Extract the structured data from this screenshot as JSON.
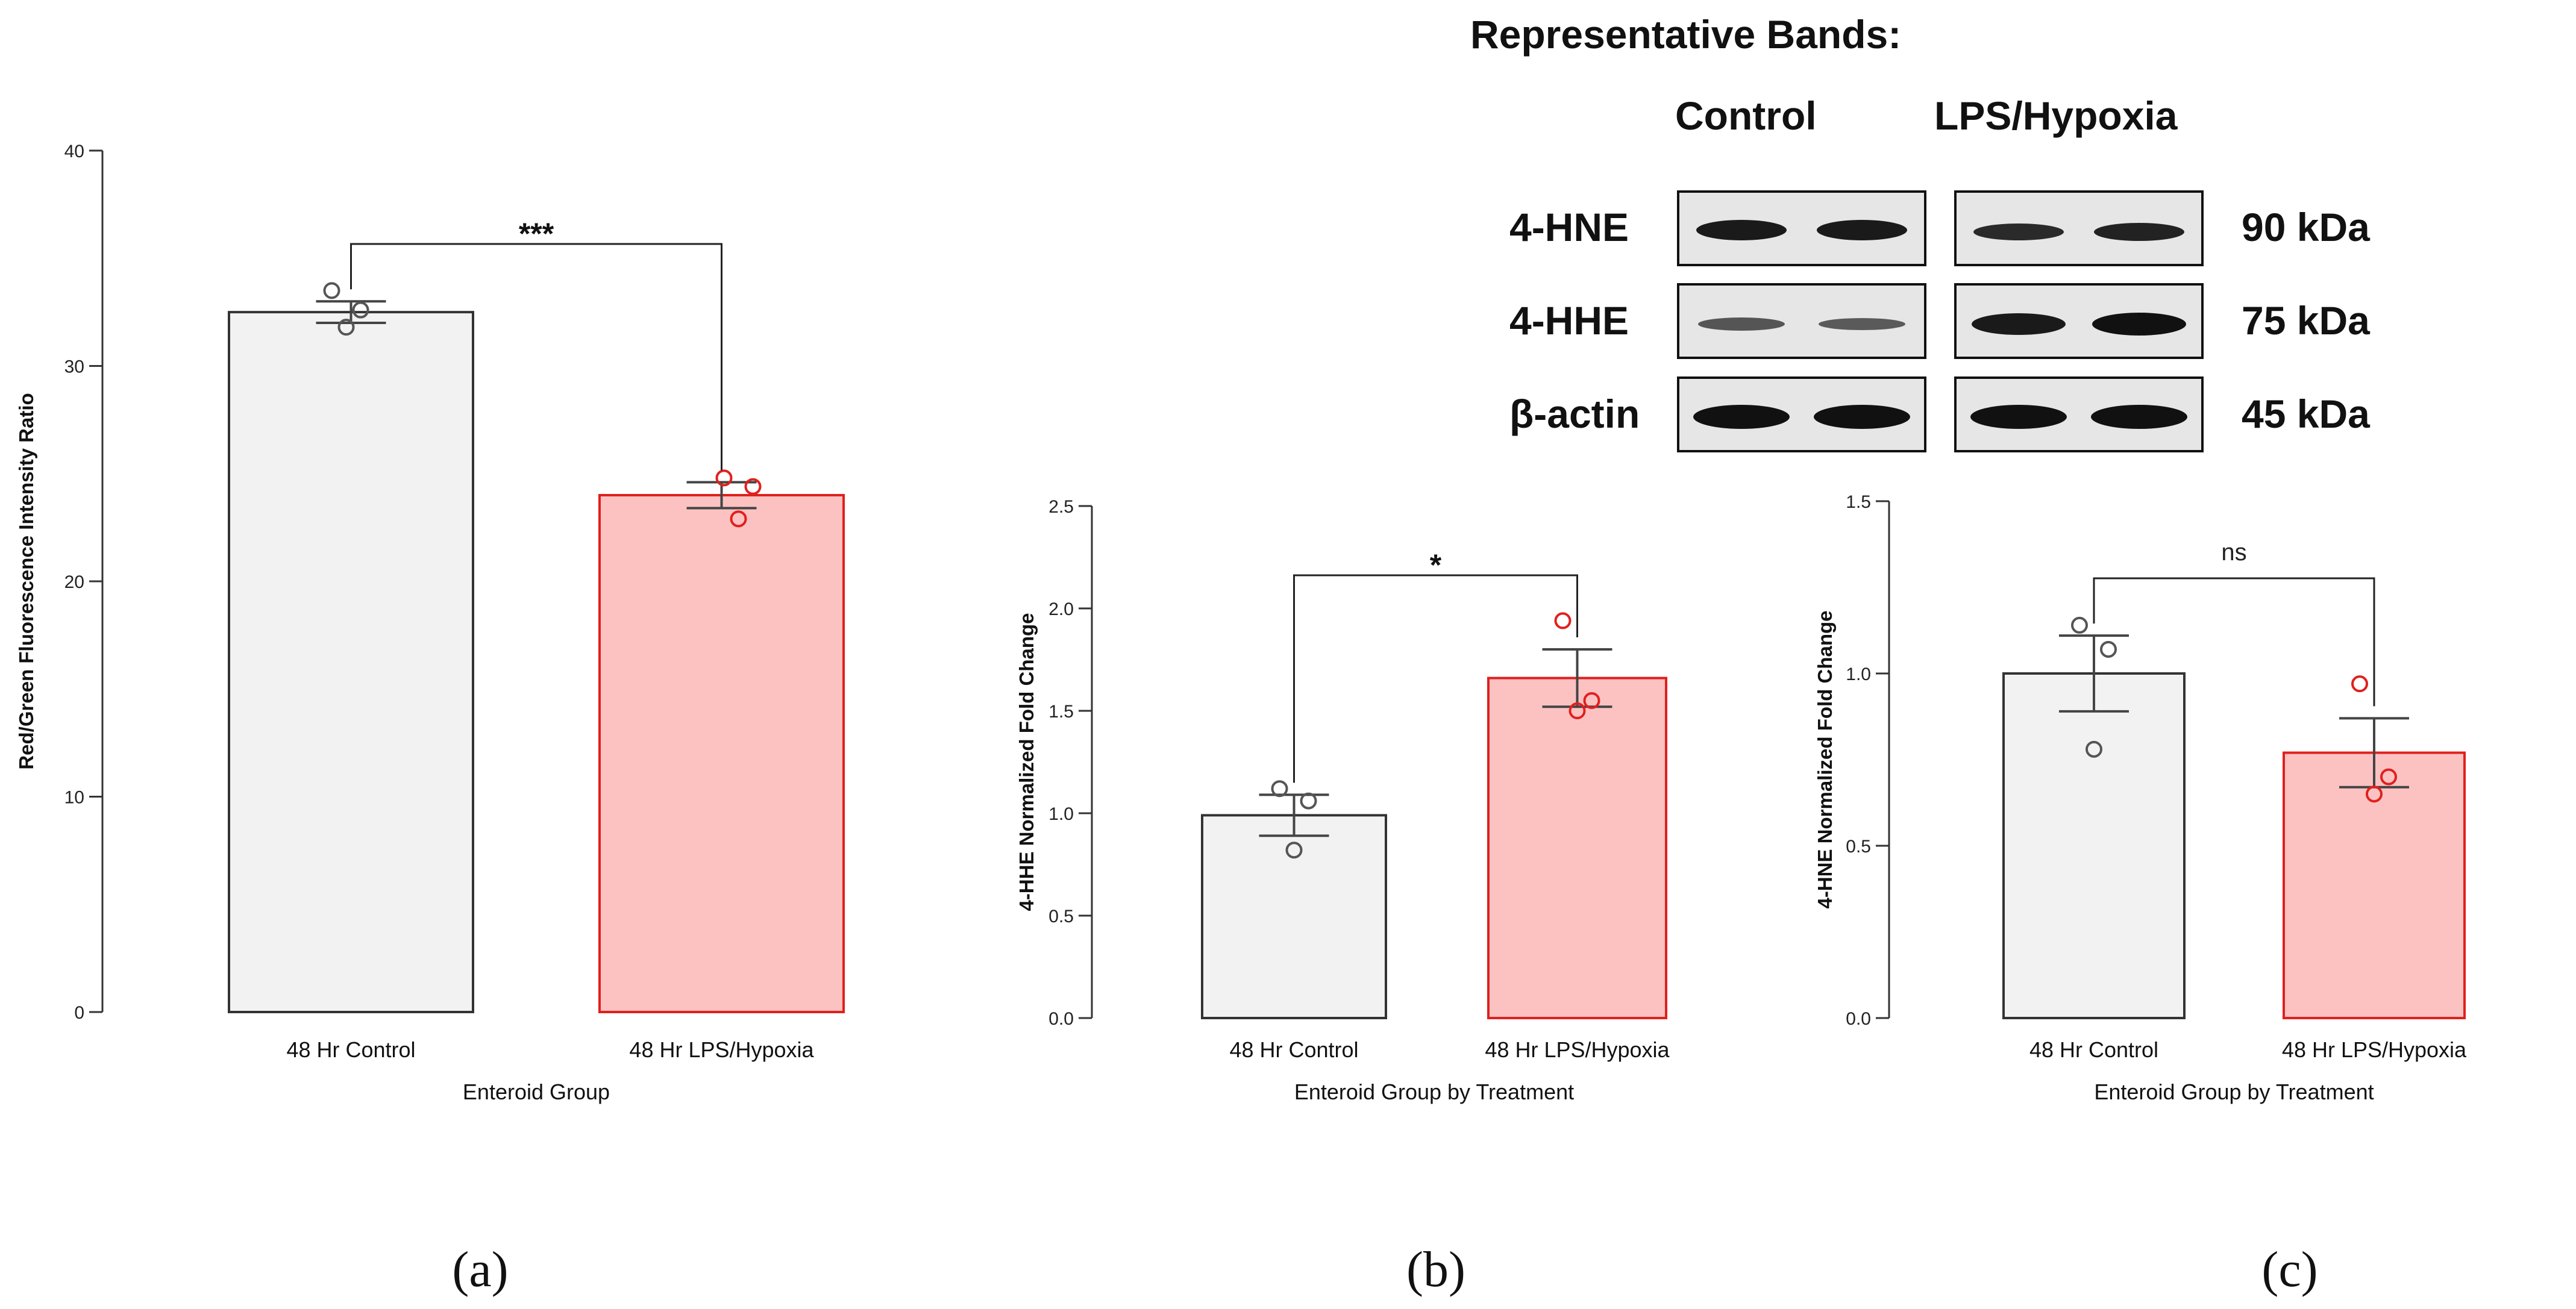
{
  "chart_data": [
    {
      "panel": "(a)",
      "type": "bar",
      "categories": [
        "48 Hr Control",
        "48 Hr LPS/Hypoxia"
      ],
      "values": [
        32.5,
        24.0
      ],
      "errors": [
        0.5,
        0.6
      ],
      "points": [
        [
          33.5,
          32.6,
          31.8
        ],
        [
          24.8,
          24.4,
          22.9
        ]
      ],
      "ylabel": "Red/Green Fluorescence Intensity Ratio",
      "xlabel": "Enteroid Group",
      "ylim": [
        0,
        40
      ],
      "yticks": [
        "0",
        "10",
        "20",
        "30",
        "40"
      ],
      "significance": "***",
      "colors": [
        "#f2f2f2",
        "#fcc2c2"
      ],
      "edge_colors": [
        "#333333",
        "#e0201e"
      ],
      "point_colors": [
        "#555555",
        "#e0201e"
      ]
    },
    {
      "panel": "(b)",
      "type": "bar",
      "categories": [
        "48 Hr Control",
        "48 Hr LPS/Hypoxia"
      ],
      "values": [
        0.99,
        1.66
      ],
      "errors": [
        0.1,
        0.14
      ],
      "points": [
        [
          1.12,
          1.06,
          0.82
        ],
        [
          1.94,
          1.55,
          1.5
        ]
      ],
      "ylabel": "4-HHE Normalized Fold Change",
      "xlabel": "Enteroid Group by Treatment",
      "ylim": [
        0,
        2.5
      ],
      "yticks": [
        "0.0",
        "0.5",
        "1.0",
        "1.5",
        "2.0",
        "2.5"
      ],
      "significance": "*",
      "colors": [
        "#f2f2f2",
        "#fcc2c2"
      ],
      "edge_colors": [
        "#333333",
        "#e0201e"
      ],
      "point_colors": [
        "#555555",
        "#e0201e"
      ]
    },
    {
      "panel": "(c)",
      "type": "bar",
      "categories": [
        "48 Hr Control",
        "48 Hr LPS/Hypoxia"
      ],
      "values": [
        1.0,
        0.77
      ],
      "errors": [
        0.11,
        0.1
      ],
      "points": [
        [
          1.14,
          1.07,
          0.78
        ],
        [
          0.97,
          0.7,
          0.65
        ]
      ],
      "ylabel": "4-HNE Normalized Fold Change",
      "xlabel": "Enteroid Group by Treatment",
      "ylim": [
        0,
        1.5
      ],
      "yticks": [
        "0.0",
        "0.5",
        "1.0",
        "1.5"
      ],
      "significance": "ns",
      "colors": [
        "#f2f2f2",
        "#fcc2c2"
      ],
      "edge_colors": [
        "#333333",
        "#e0201e"
      ],
      "point_colors": [
        "#555555",
        "#e0201e"
      ]
    }
  ],
  "blot": {
    "title": "Representative Bands:",
    "groups": [
      "Control",
      "LPS/Hypoxia"
    ],
    "rows": [
      {
        "label": "4-HNE",
        "size": "90 kDa"
      },
      {
        "label": "4-HHE",
        "size": "75 kDa"
      },
      {
        "label": "β-actin",
        "size": "45 kDa"
      }
    ]
  },
  "panel_labels": [
    "(a)",
    "(b)",
    "(c)"
  ]
}
